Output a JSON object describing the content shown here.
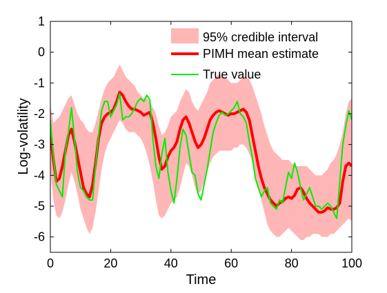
{
  "chart_data": {
    "type": "line",
    "title": "",
    "xlabel": "Time",
    "ylabel": "Log-volatility",
    "xlim": [
      0,
      100
    ],
    "ylim": [
      -6.5,
      1
    ],
    "xticks": [
      0,
      20,
      40,
      60,
      80,
      100
    ],
    "yticks": [
      1,
      0,
      -1,
      -2,
      -3,
      -4,
      -5,
      -6
    ],
    "xtick_labels": [
      "0",
      "20",
      "40",
      "60",
      "80",
      "100"
    ],
    "ytick_labels": [
      "1",
      "0",
      "-1",
      "-2",
      "-3",
      "-4",
      "-5",
      "-6"
    ],
    "grid": false,
    "legend_position": "top-right",
    "legend": [
      "95% credible interval",
      "PIMH mean estimate",
      "True value"
    ],
    "colors": {
      "band": "#ffb6b6",
      "mean": "#ff0000",
      "truth": "#00ee00"
    },
    "x": [
      0,
      1,
      2,
      3,
      4,
      5,
      6,
      7,
      8,
      9,
      10,
      11,
      12,
      13,
      14,
      15,
      16,
      17,
      18,
      19,
      20,
      21,
      22,
      23,
      24,
      25,
      26,
      27,
      28,
      29,
      30,
      31,
      32,
      33,
      34,
      35,
      36,
      37,
      38,
      39,
      40,
      41,
      42,
      43,
      44,
      45,
      46,
      47,
      48,
      49,
      50,
      51,
      52,
      53,
      54,
      55,
      56,
      57,
      58,
      59,
      60,
      61,
      62,
      63,
      64,
      65,
      66,
      67,
      68,
      69,
      70,
      71,
      72,
      73,
      74,
      75,
      76,
      77,
      78,
      79,
      80,
      81,
      82,
      83,
      84,
      85,
      86,
      87,
      88,
      89,
      90,
      91,
      92,
      93,
      94,
      95,
      96,
      97,
      98,
      99,
      100
    ],
    "series": [
      {
        "name": "95% credible interval",
        "kind": "band",
        "upper": [
          -1.7,
          -2.3,
          -2.2,
          -2.1,
          -1.9,
          -1.7,
          -1.5,
          -1.4,
          -1.7,
          -2.0,
          -2.2,
          -2.3,
          -2.5,
          -2.6,
          -2.6,
          -2.3,
          -1.9,
          -1.5,
          -1.2,
          -1.0,
          -0.9,
          -0.8,
          -0.6,
          -0.4,
          -0.6,
          -0.8,
          -0.9,
          -1.0,
          -1.1,
          -1.3,
          -1.4,
          -1.5,
          -1.5,
          -1.6,
          -1.8,
          -2.0,
          -2.4,
          -2.7,
          -2.6,
          -2.4,
          -2.1,
          -2.0,
          -1.9,
          -1.6,
          -1.4,
          -1.2,
          -1.3,
          -1.6,
          -1.8,
          -1.9,
          -1.7,
          -1.5,
          -1.3,
          -1.0,
          -0.9,
          -0.8,
          -0.7,
          -0.8,
          -0.8,
          -0.9,
          -1.0,
          -1.0,
          -1.0,
          -0.9,
          -0.8,
          -0.8,
          -0.9,
          -1.1,
          -1.4,
          -1.7,
          -2.0,
          -2.4,
          -2.7,
          -3.0,
          -3.2,
          -3.3,
          -3.4,
          -3.5,
          -3.5,
          -3.5,
          -3.6,
          -3.7,
          -3.7,
          -3.7,
          -3.7,
          -3.7,
          -3.8,
          -3.9,
          -4.0,
          -4.0,
          -4.0,
          -3.9,
          -3.8,
          -3.6,
          -3.5,
          -3.3,
          -3.0,
          -2.6,
          -2.0,
          -1.6,
          -1.5
        ],
        "lower": [
          -3.8,
          -4.8,
          -5.3,
          -5.4,
          -5.2,
          -4.8,
          -4.3,
          -3.9,
          -4.2,
          -4.6,
          -5.1,
          -5.4,
          -5.7,
          -5.9,
          -5.7,
          -5.2,
          -4.5,
          -3.8,
          -3.3,
          -3.0,
          -2.8,
          -2.6,
          -2.4,
          -2.2,
          -2.3,
          -2.5,
          -2.6,
          -2.6,
          -2.6,
          -2.7,
          -2.8,
          -3.0,
          -3.3,
          -3.7,
          -4.2,
          -4.8,
          -5.3,
          -5.4,
          -5.3,
          -5.1,
          -4.9,
          -4.8,
          -4.7,
          -4.4,
          -4.0,
          -3.6,
          -3.7,
          -4.0,
          -4.4,
          -4.6,
          -4.5,
          -4.2,
          -3.9,
          -3.6,
          -3.4,
          -3.3,
          -3.2,
          -3.2,
          -3.2,
          -3.2,
          -3.2,
          -3.1,
          -3.1,
          -3.0,
          -3.0,
          -3.1,
          -3.3,
          -3.6,
          -4.0,
          -4.4,
          -4.8,
          -5.2,
          -5.6,
          -5.8,
          -5.9,
          -6.0,
          -6.0,
          -5.9,
          -5.8,
          -5.7,
          -5.8,
          -5.9,
          -6.0,
          -6.1,
          -6.1,
          -6.0,
          -6.0,
          -5.9,
          -5.9,
          -5.9,
          -6.0,
          -6.0,
          -6.0,
          -5.9,
          -5.9,
          -5.8,
          -5.7,
          -5.6,
          -5.5,
          -5.4,
          -5.5
        ]
      },
      {
        "name": "PIMH mean estimate",
        "kind": "line",
        "values": [
          -2.6,
          -3.5,
          -4.2,
          -4.1,
          -3.7,
          -3.2,
          -2.7,
          -2.5,
          -2.9,
          -3.4,
          -3.9,
          -4.4,
          -4.6,
          -4.7,
          -4.3,
          -3.6,
          -2.8,
          -2.3,
          -2.1,
          -2.0,
          -1.95,
          -1.85,
          -1.6,
          -1.3,
          -1.4,
          -1.6,
          -1.75,
          -1.85,
          -1.85,
          -1.9,
          -1.95,
          -2.05,
          -2.0,
          -1.95,
          -2.3,
          -2.8,
          -3.4,
          -3.8,
          -3.7,
          -3.4,
          -3.2,
          -3.1,
          -2.9,
          -2.5,
          -2.2,
          -2.1,
          -2.3,
          -2.6,
          -2.9,
          -3.1,
          -3.0,
          -2.8,
          -2.5,
          -2.2,
          -2.05,
          -1.95,
          -1.9,
          -1.95,
          -2.0,
          -2.05,
          -2.0,
          -2.0,
          -1.95,
          -1.9,
          -1.85,
          -1.95,
          -2.2,
          -2.7,
          -3.2,
          -3.7,
          -4.1,
          -4.4,
          -4.6,
          -4.8,
          -4.9,
          -5.0,
          -4.9,
          -4.85,
          -4.75,
          -4.7,
          -4.75,
          -4.65,
          -4.45,
          -4.4,
          -4.55,
          -4.75,
          -4.9,
          -5.0,
          -5.1,
          -5.2,
          -5.2,
          -5.15,
          -5.05,
          -5.1,
          -5.1,
          -5.05,
          -4.9,
          -4.2,
          -3.7,
          -3.6,
          -3.7
        ]
      },
      {
        "name": "True value",
        "kind": "line",
        "values": [
          -2.2,
          -3.4,
          -4.3,
          -4.5,
          -4.7,
          -3.2,
          -2.6,
          -1.8,
          -2.8,
          -3.9,
          -4.4,
          -4.5,
          -4.7,
          -4.8,
          -4.8,
          -3.7,
          -2.7,
          -1.9,
          -1.6,
          -1.6,
          -2.1,
          -1.9,
          -1.7,
          -1.35,
          -2.2,
          -2.1,
          -2.1,
          -2.0,
          -1.8,
          -1.6,
          -1.5,
          -1.6,
          -1.4,
          -1.55,
          -2.8,
          -3.7,
          -4.1,
          -3.3,
          -2.8,
          -3.9,
          -4.5,
          -4.9,
          -4.1,
          -3.1,
          -2.5,
          -2.7,
          -3.3,
          -3.9,
          -4.0,
          -4.6,
          -4.8,
          -4.3,
          -3.8,
          -3.2,
          -2.6,
          -2.3,
          -2.05,
          -1.95,
          -2.05,
          -2.0,
          -1.9,
          -1.8,
          -1.6,
          -2.0,
          -2.1,
          -2.3,
          -2.9,
          -3.4,
          -4.1,
          -4.4,
          -4.7,
          -4.5,
          -4.4,
          -4.9,
          -5.0,
          -5.1,
          -4.8,
          -4.9,
          -4.4,
          -3.9,
          -4.1,
          -3.6,
          -3.9,
          -4.4,
          -4.8,
          -4.6,
          -4.4,
          -4.7,
          -5.0,
          -5.0,
          -5.1,
          -5.0,
          -4.9,
          -5.0,
          -5.2,
          -5.4,
          -4.2,
          -3.0,
          -2.4,
          -1.9,
          -2.2
        ]
      }
    ]
  }
}
